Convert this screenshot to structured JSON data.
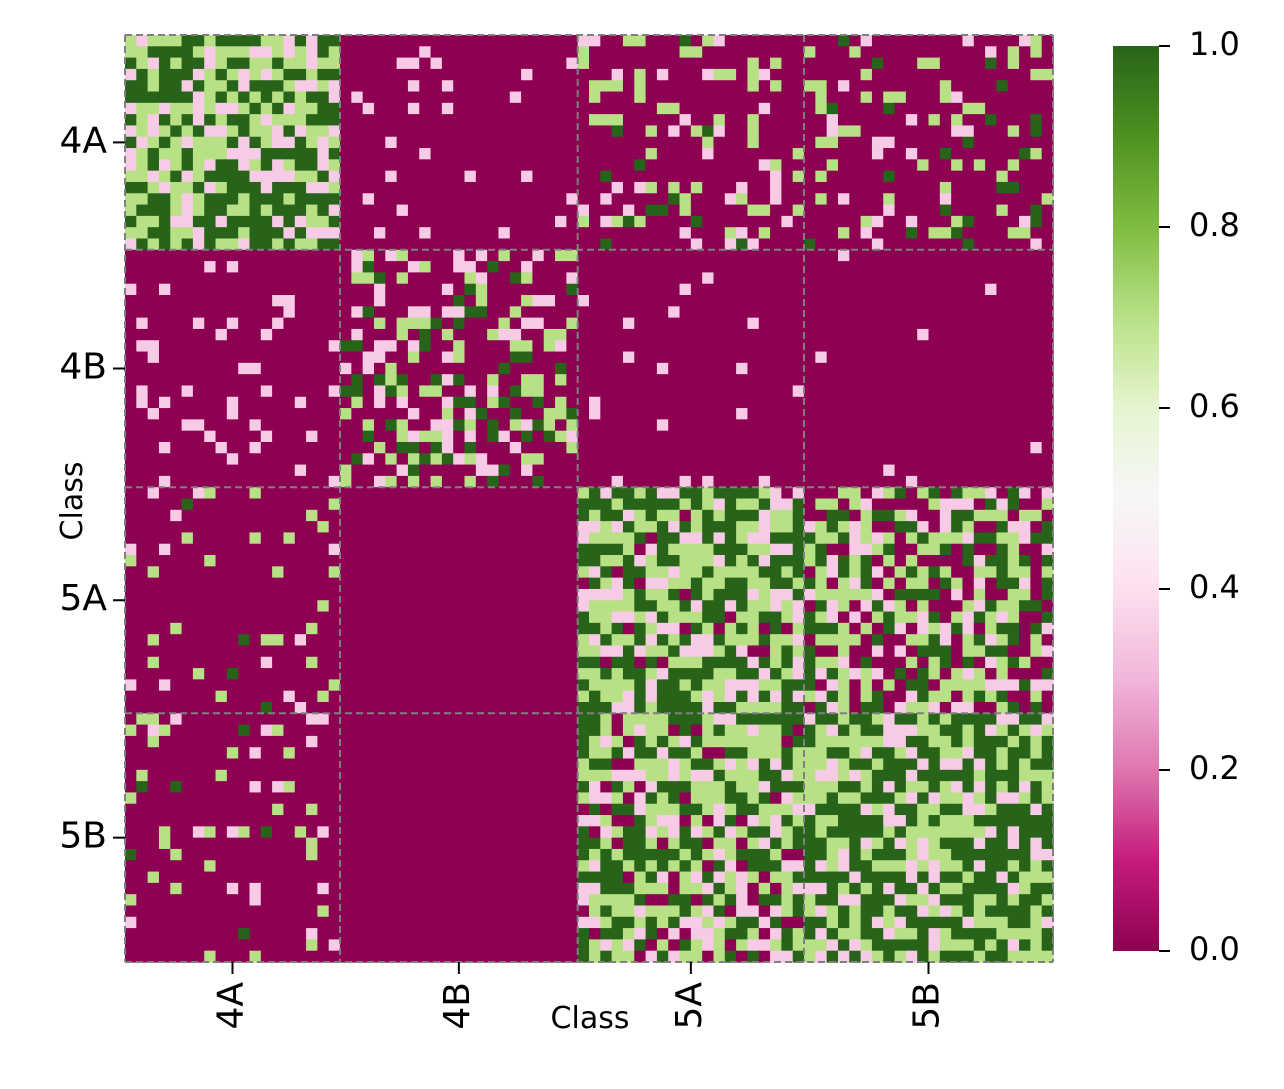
{
  "chart_data": {
    "type": "heatmap",
    "xlabel": "Class",
    "ylabel": "Class",
    "classes": [
      "4A",
      "4B",
      "5A",
      "5B"
    ],
    "x_tick_labels": [
      "4A",
      "4B",
      "5A",
      "5B"
    ],
    "y_tick_labels": [
      "4A",
      "4B",
      "5A",
      "5B"
    ],
    "colorbar": {
      "colormap": "PiYG",
      "vmin": 0.0,
      "vmax": 1.0,
      "tick_values": [
        0.0,
        0.2,
        0.4,
        0.6,
        0.8,
        1.0
      ],
      "tick_labels": [
        "0.0",
        "0.2",
        "0.4",
        "0.6",
        "0.8",
        "1.0"
      ],
      "stops": [
        "#8e0152",
        "#c51b7d",
        "#de77ae",
        "#f1b6da",
        "#fde0ef",
        "#f7f7f7",
        "#e6f5d0",
        "#b8e186",
        "#7fbc41",
        "#4d9221",
        "#276419"
      ]
    },
    "class_cell_counts": [
      19,
      21,
      20,
      22
    ],
    "block_boundaries": true,
    "block_boundary_style": "dashed-gray",
    "block_levels": [
      [
        0.65,
        0.02,
        0.22,
        0.18
      ],
      [
        0.03,
        0.36,
        0.01,
        0.01
      ],
      [
        0.1,
        0.0,
        0.62,
        0.5
      ],
      [
        0.12,
        0.0,
        0.58,
        0.66
      ]
    ],
    "value_distribution": "clustered near 0, ~0.35, ~0.7 and 1 within blocks",
    "grid": false
  }
}
